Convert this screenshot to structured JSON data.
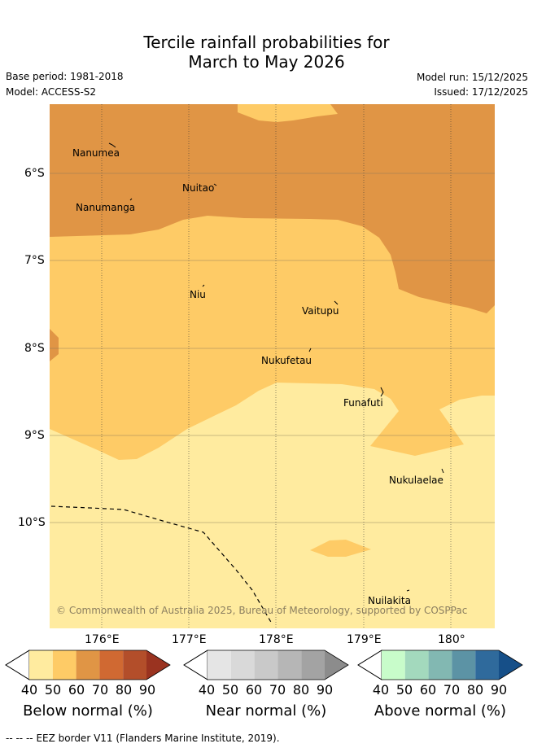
{
  "title": {
    "line1": "Tercile rainfall probabilities for",
    "line2": "March to May 2026"
  },
  "meta": {
    "base_period": "Base period: 1981-2018",
    "model": "Model: ACCESS-S2",
    "model_run": "Model run: 15/12/2025",
    "issued": "Issued: 17/12/2025"
  },
  "map": {
    "lat_labels": [
      "6°S",
      "7°S",
      "8°S",
      "9°S",
      "10°S"
    ],
    "lon_labels": [
      "176°E",
      "177°E",
      "178°E",
      "179°E",
      "180°"
    ],
    "places": [
      "Nanumea",
      "Nuitao",
      "Nanumanga",
      "Niu",
      "Vaitupu",
      "Nukufetau",
      "Funafuti",
      "Nukulaelae",
      "Nuilakita"
    ],
    "copyright": "© Commonwealth of Australia 2025, Bureau of Meteorology, supported by COSPPac",
    "fill_classes": {
      "below_50_60": "#fecb66",
      "below_60_70": "#e09545",
      "below_40_50": "#ffeb9f"
    }
  },
  "colorbars": {
    "ticks": [
      "40",
      "50",
      "60",
      "70",
      "80",
      "90"
    ],
    "below": {
      "label": "Below normal (%)",
      "colors": [
        "#ffeb9f",
        "#fecb66",
        "#e09545",
        "#d06932",
        "#b34e2a",
        "#9a3320"
      ]
    },
    "near": {
      "label": "Near normal (%)",
      "colors": [
        "#e5e5e5",
        "#d9d9d9",
        "#c9c9c9",
        "#b6b6b6",
        "#a3a3a3",
        "#8c8c8c"
      ]
    },
    "above": {
      "label": "Above normal (%)",
      "colors": [
        "#c8fcca",
        "#a3d9bd",
        "#82b8b2",
        "#5c93a5",
        "#2f6a9c",
        "#164f88"
      ]
    }
  },
  "footer": {
    "legend_symbol": "-- -- --",
    "eez": "EEZ border V11 (Flanders Marine Institute, 2019)."
  }
}
